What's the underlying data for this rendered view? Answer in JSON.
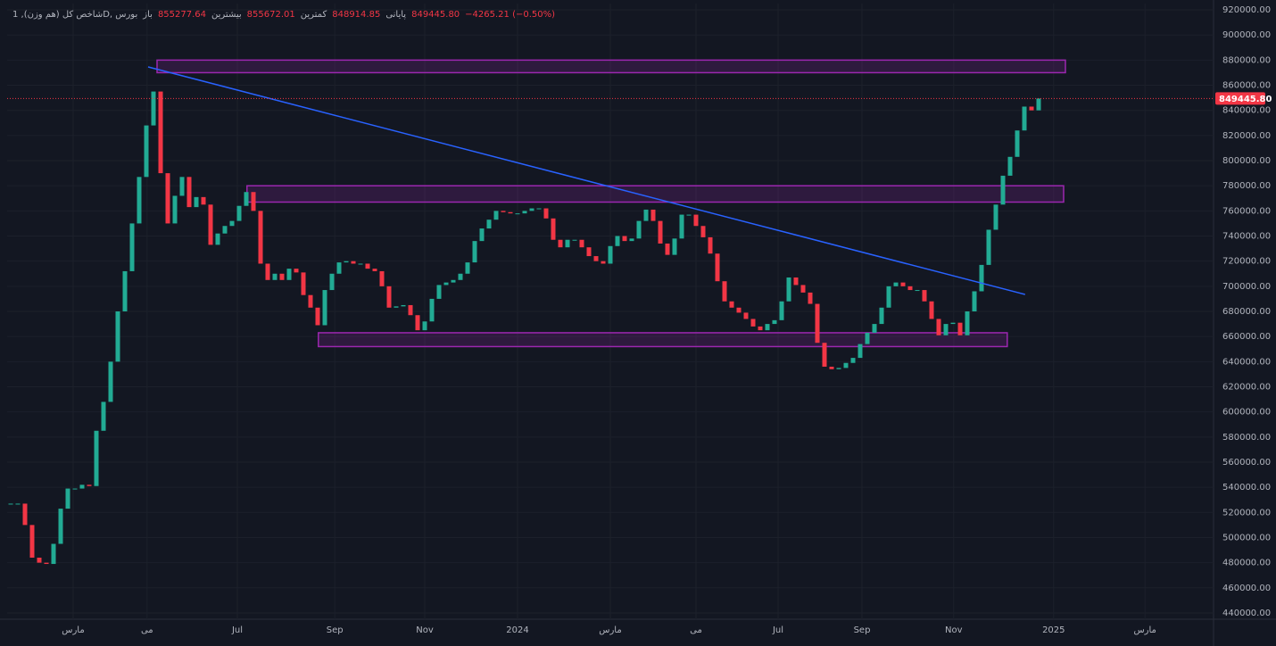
{
  "chart_data": {
    "type": "candlestick",
    "header": {
      "symbol": "شاخص کل (هم وزن), 1D, بورس",
      "open_label": "باز",
      "open": "855277.64",
      "high_label": "بیشترین",
      "high": "855672.01",
      "low_label": "کمترین",
      "low": "848914.85",
      "close_label": "پایانی",
      "close": "849445.80",
      "change": "−4265.21 (−0.50%)"
    },
    "series": [
      {
        "name": "Close",
        "up_color": "#22ab94",
        "down_color": "#f23645",
        "values": [
          527000,
          527000,
          510000,
          484000,
          480000,
          479000,
          495000,
          523000,
          539000,
          539000,
          542000,
          541000,
          585000,
          608000,
          640000,
          680000,
          712000,
          750000,
          787000,
          828000,
          855000,
          790000,
          750000,
          772000,
          787000,
          763000,
          771000,
          765000,
          733000,
          742000,
          748000,
          752000,
          764000,
          775000,
          760000,
          718000,
          705000,
          710000,
          705000,
          714000,
          711000,
          693000,
          683000,
          669000,
          697000,
          710000,
          719000,
          720000,
          718000,
          718000,
          714000,
          712000,
          700000,
          683000,
          684000,
          685000,
          677000,
          665000,
          672000,
          690000,
          701000,
          703000,
          705000,
          710000,
          719000,
          736000,
          746000,
          753000,
          760000,
          759000,
          758000,
          758000,
          760000,
          762000,
          762000,
          754000,
          737000,
          731000,
          737000,
          737000,
          731000,
          724000,
          720000,
          718000,
          732000,
          740000,
          736000,
          738000,
          752000,
          761000,
          752000,
          734000,
          725000,
          738000,
          757000,
          757000,
          748000,
          739000,
          726000,
          704000,
          688000,
          683000,
          679000,
          674000,
          668000,
          665000,
          670000,
          673000,
          688000,
          707000,
          701000,
          695000,
          686000,
          655000,
          636000,
          634000,
          635000,
          639000,
          643000,
          654000,
          663000,
          670000,
          683000,
          700000,
          703000,
          700000,
          697000,
          697000,
          688000,
          674000,
          661000,
          670000,
          671000,
          661000,
          680000,
          696000,
          717000,
          745000,
          765000,
          788000,
          803000,
          824000,
          843000,
          840000,
          849445.8
        ]
      }
    ],
    "last_price": {
      "value": 849445.8,
      "label": "849445.80"
    },
    "xlim": [
      -0.5,
      168.5
    ],
    "xticks": [
      {
        "value": 8.75,
        "label": "مارس"
      },
      {
        "value": 19.1,
        "label": "می"
      },
      {
        "value": 31.75,
        "label": "Jul"
      },
      {
        "value": 45.4,
        "label": "Sep"
      },
      {
        "value": 58,
        "label": "Nov"
      },
      {
        "value": 71,
        "label": "2024"
      },
      {
        "value": 84,
        "label": "مارس"
      },
      {
        "value": 96,
        "label": "می"
      },
      {
        "value": 107.5,
        "label": "Jul"
      },
      {
        "value": 119.25,
        "label": "Sep"
      },
      {
        "value": 132.1,
        "label": "Nov"
      },
      {
        "value": 146.1,
        "label": "2025"
      },
      {
        "value": 158.9,
        "label": "مارس"
      }
    ],
    "ylim": [
      435000,
      925000
    ],
    "yticks": [
      {
        "value": 440000,
        "label": "440000.00"
      },
      {
        "value": 460000,
        "label": "460000.00"
      },
      {
        "value": 480000,
        "label": "480000.00"
      },
      {
        "value": 500000,
        "label": "500000.00"
      },
      {
        "value": 520000,
        "label": "520000.00"
      },
      {
        "value": 540000,
        "label": "540000.00"
      },
      {
        "value": 560000,
        "label": "560000.00"
      },
      {
        "value": 580000,
        "label": "580000.00"
      },
      {
        "value": 600000,
        "label": "600000.00"
      },
      {
        "value": 620000,
        "label": "620000.00"
      },
      {
        "value": 640000,
        "label": "640000.00"
      },
      {
        "value": 660000,
        "label": "660000.00"
      },
      {
        "value": 680000,
        "label": "680000.00"
      },
      {
        "value": 700000,
        "label": "700000.00"
      },
      {
        "value": 720000,
        "label": "720000.00"
      },
      {
        "value": 740000,
        "label": "740000.00"
      },
      {
        "value": 760000,
        "label": "760000.00"
      },
      {
        "value": 780000,
        "label": "780000.00"
      },
      {
        "value": 800000,
        "label": "800000.00"
      },
      {
        "value": 820000,
        "label": "820000.00"
      },
      {
        "value": 840000,
        "label": "840000.00"
      },
      {
        "value": 860000,
        "label": "860000.00"
      },
      {
        "value": 880000,
        "label": "880000.00"
      },
      {
        "value": 900000,
        "label": "900000.00"
      },
      {
        "value": 920000,
        "label": "920000.00"
      }
    ],
    "grid": true,
    "zones": [
      {
        "x": [
          20.5,
          147.75
        ],
        "y": [
          870000,
          880000
        ],
        "color": "#9c27b0"
      },
      {
        "x": [
          33.1,
          147.5
        ],
        "y": [
          767000,
          780000
        ],
        "color": "#9c27b0"
      },
      {
        "x": [
          43.1,
          139.6
        ],
        "y": [
          652000,
          663000
        ],
        "color": "#9c27b0"
      }
    ],
    "trendline": {
      "x": [
        19.25,
        142.1
      ],
      "y": [
        874600,
        693500
      ],
      "color": "#2962ff"
    }
  }
}
